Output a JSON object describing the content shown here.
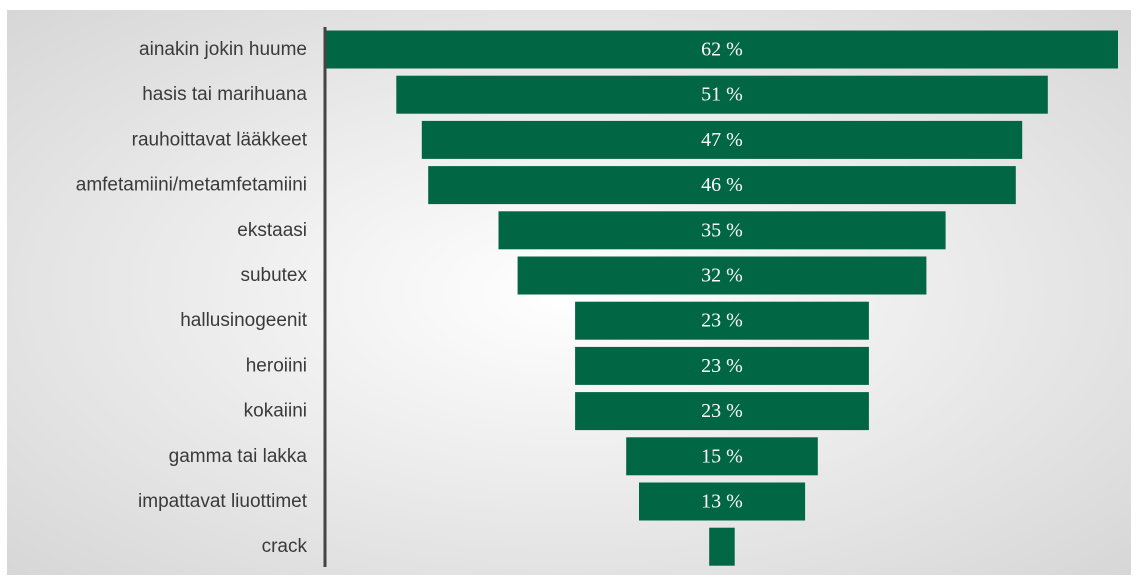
{
  "chart_data": {
    "type": "bar",
    "orientation": "horizontal",
    "layout": "funnel-centered",
    "categories": [
      "ainakin jokin huume",
      "hasis tai marihuana",
      "rauhoittavat lääkkeet",
      "amfetamiini/metamfetamiini",
      "ekstaasi",
      "subutex",
      "hallusinogeenit",
      "heroiini",
      "kokaiini",
      "gamma tai lakka",
      "impattavat liuottimet",
      "crack"
    ],
    "values": [
      62,
      51,
      47,
      46,
      35,
      32,
      23,
      23,
      23,
      15,
      13,
      2
    ],
    "data_labels": [
      "62 %",
      "51 %",
      "47 %",
      "46 %",
      "35 %",
      "32 %",
      "23 %",
      "23 %",
      "23 %",
      "15 %",
      "13 %",
      ""
    ],
    "title": "",
    "xlabel": "",
    "ylabel": "",
    "xlim": [
      0,
      62
    ],
    "grid": false,
    "legend": "none",
    "colors": {
      "bar": "#006644",
      "label_text": "#3a3a3a",
      "value_text": "#ffffff",
      "axis_line": "#444444",
      "background_edge": "#d0d0d0",
      "background_center": "#ffffff"
    }
  }
}
